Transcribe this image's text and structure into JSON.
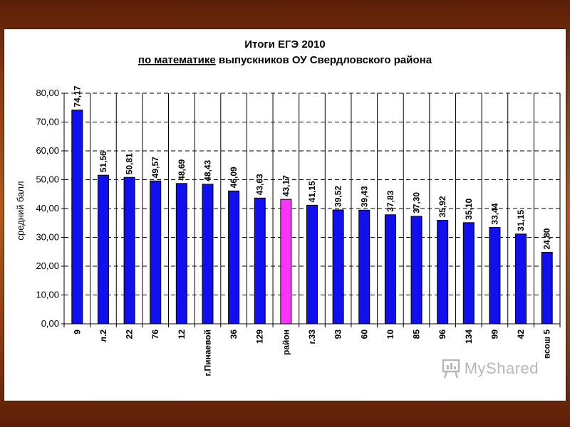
{
  "colors": {
    "bar": "#1010ee",
    "bar_highlight": "#ff33ff",
    "bar_stroke": "#000000",
    "grid": "#000000"
  },
  "chart_data": {
    "type": "bar",
    "title": "Итоги ЕГЭ 2010",
    "subtitle_underlined": "по математике",
    "subtitle_rest": " выпускников ОУ Свердловского района",
    "ylabel": "средний балл",
    "ylim": [
      0,
      80
    ],
    "yticks": [
      "0,00",
      "10,00",
      "20,00",
      "30,00",
      "40,00",
      "50,00",
      "60,00",
      "70,00",
      "80,00"
    ],
    "grid": "horizontal dashed",
    "categories": [
      "9",
      "л.2",
      "22",
      "76",
      "12",
      "г.Пинаевой",
      "36",
      "129",
      "район",
      "г.33",
      "93",
      "60",
      "10",
      "85",
      "96",
      "134",
      "99",
      "42",
      "всош 5"
    ],
    "values": [
      74.17,
      51.56,
      50.81,
      49.57,
      48.69,
      48.43,
      46.09,
      43.63,
      43.17,
      41.15,
      39.52,
      39.43,
      37.83,
      37.3,
      35.92,
      35.1,
      33.44,
      31.15,
      24.8
    ],
    "value_labels": [
      "74,17",
      "51,56",
      "50,81",
      "49,57",
      "48,69",
      "48,43",
      "46,09",
      "43,63",
      "43,17",
      "41,15",
      "39,52",
      "39,43",
      "37,83",
      "37,30",
      "35,92",
      "35,10",
      "33,44",
      "31,15",
      "24,80"
    ],
    "highlight_category": "район"
  },
  "watermark": {
    "text": "MyShared",
    "icon": "presentation-board-icon"
  }
}
